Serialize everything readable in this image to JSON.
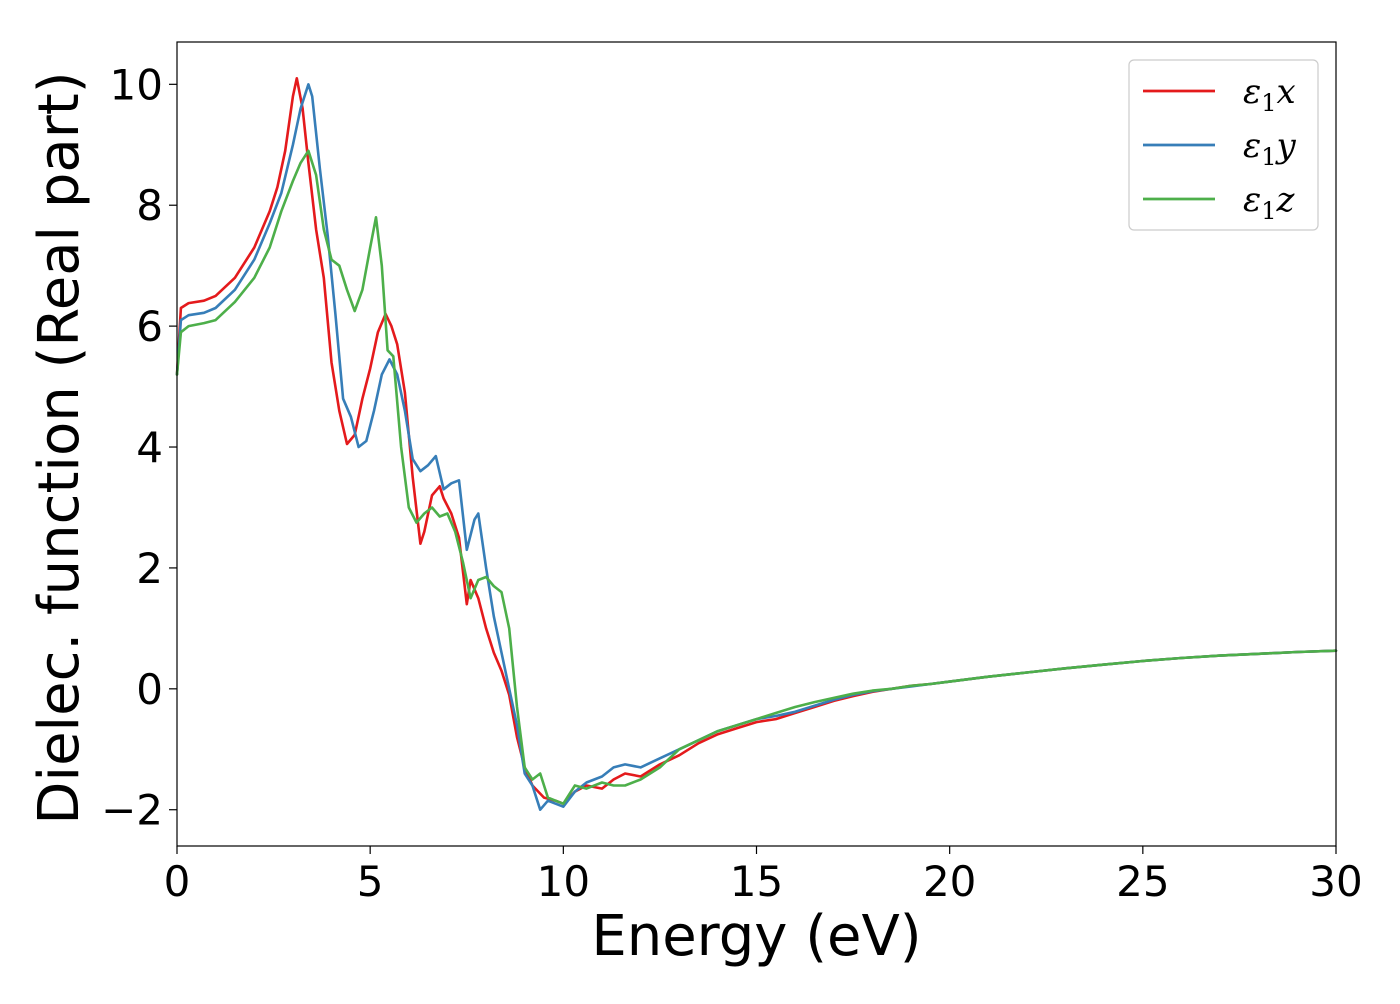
{
  "chart_data": {
    "type": "line",
    "title": "",
    "xlabel": "Energy (eV)",
    "ylabel": "Dielec. function (Real part)",
    "xlim": [
      0,
      30
    ],
    "ylim": [
      -2.6,
      10.7
    ],
    "xticks": [
      0,
      5,
      10,
      15,
      20,
      25,
      30
    ],
    "xtick_labels": [
      "0",
      "5",
      "10",
      "15",
      "20",
      "25",
      "30"
    ],
    "yticks": [
      -2,
      0,
      2,
      4,
      6,
      8,
      10
    ],
    "ytick_labels": [
      "−2",
      "0",
      "2",
      "4",
      "6",
      "8",
      "10"
    ],
    "grid": false,
    "legend_position": "top-right",
    "series": [
      {
        "name": "ε₁x",
        "legend_base": "ε",
        "legend_sub": "1",
        "legend_var": "x",
        "color": "#e41a1c",
        "x": [
          0,
          0.1,
          0.3,
          0.7,
          1.0,
          1.5,
          2.0,
          2.4,
          2.6,
          2.8,
          3.0,
          3.1,
          3.25,
          3.4,
          3.6,
          3.8,
          4.0,
          4.2,
          4.4,
          4.6,
          4.8,
          5.0,
          5.2,
          5.4,
          5.55,
          5.7,
          5.9,
          6.1,
          6.3,
          6.4,
          6.6,
          6.8,
          6.9,
          7.1,
          7.3,
          7.5,
          7.6,
          7.8,
          8.0,
          8.2,
          8.4,
          8.6,
          8.8,
          9.0,
          9.2,
          9.5,
          9.8,
          10.0,
          10.3,
          10.6,
          11.0,
          11.3,
          11.6,
          12.0,
          12.5,
          13.0,
          13.5,
          14.0,
          14.5,
          15.0,
          15.5,
          16.0,
          16.5,
          17.0,
          17.5,
          18.0,
          18.5,
          19.0,
          19.5,
          20.0,
          21.0,
          22.0,
          23.0,
          24.0,
          25.0,
          26.0,
          27.0,
          28.0,
          29.0,
          30.0
        ],
        "y": [
          5.2,
          6.3,
          6.38,
          6.42,
          6.5,
          6.8,
          7.3,
          7.9,
          8.3,
          8.9,
          9.8,
          10.1,
          9.6,
          8.7,
          7.6,
          6.8,
          5.4,
          4.6,
          4.05,
          4.2,
          4.8,
          5.3,
          5.9,
          6.2,
          6.0,
          5.7,
          4.9,
          3.5,
          2.4,
          2.6,
          3.2,
          3.35,
          3.15,
          2.9,
          2.5,
          1.4,
          1.8,
          1.5,
          1.0,
          0.6,
          0.3,
          -0.1,
          -0.8,
          -1.3,
          -1.6,
          -1.8,
          -1.85,
          -1.9,
          -1.7,
          -1.6,
          -1.65,
          -1.5,
          -1.4,
          -1.45,
          -1.25,
          -1.1,
          -0.9,
          -0.75,
          -0.65,
          -0.55,
          -0.5,
          -0.4,
          -0.3,
          -0.2,
          -0.12,
          -0.05,
          0.0,
          0.05,
          0.08,
          0.12,
          0.2,
          0.27,
          0.34,
          0.4,
          0.46,
          0.51,
          0.55,
          0.58,
          0.61,
          0.63
        ]
      },
      {
        "name": "ε₁y",
        "legend_base": "ε",
        "legend_sub": "1",
        "legend_var": "y",
        "color": "#377eb8",
        "x": [
          0,
          0.1,
          0.3,
          0.7,
          1.0,
          1.5,
          2.0,
          2.4,
          2.7,
          3.0,
          3.2,
          3.4,
          3.5,
          3.7,
          3.9,
          4.1,
          4.3,
          4.5,
          4.7,
          4.9,
          5.1,
          5.3,
          5.5,
          5.7,
          5.9,
          6.1,
          6.3,
          6.5,
          6.7,
          6.9,
          7.1,
          7.3,
          7.5,
          7.7,
          7.8,
          8.0,
          8.2,
          8.4,
          8.6,
          8.8,
          9.0,
          9.2,
          9.4,
          9.6,
          9.8,
          10.0,
          10.3,
          10.6,
          11.0,
          11.3,
          11.6,
          12.0,
          12.5,
          13.0,
          13.5,
          14.0,
          14.5,
          15.0,
          15.5,
          16.0,
          16.5,
          17.0,
          17.5,
          18.0,
          18.5,
          19.0,
          19.5,
          20.0,
          21.0,
          22.0,
          23.0,
          24.0,
          25.0,
          26.0,
          27.0,
          28.0,
          29.0,
          30.0
        ],
        "y": [
          5.2,
          6.1,
          6.18,
          6.22,
          6.3,
          6.6,
          7.1,
          7.7,
          8.2,
          9.0,
          9.6,
          10.0,
          9.8,
          8.6,
          7.5,
          6.2,
          4.8,
          4.5,
          4.0,
          4.1,
          4.6,
          5.2,
          5.45,
          5.2,
          4.6,
          3.8,
          3.6,
          3.7,
          3.85,
          3.3,
          3.4,
          3.45,
          2.3,
          2.8,
          2.9,
          2.0,
          1.2,
          0.6,
          0.0,
          -0.6,
          -1.4,
          -1.6,
          -2.0,
          -1.85,
          -1.9,
          -1.95,
          -1.7,
          -1.55,
          -1.45,
          -1.3,
          -1.25,
          -1.3,
          -1.15,
          -1.0,
          -0.85,
          -0.7,
          -0.6,
          -0.5,
          -0.45,
          -0.38,
          -0.28,
          -0.18,
          -0.1,
          -0.04,
          0.0,
          0.04,
          0.08,
          0.12,
          0.2,
          0.27,
          0.34,
          0.4,
          0.46,
          0.51,
          0.55,
          0.58,
          0.61,
          0.63
        ]
      },
      {
        "name": "ε₁z",
        "legend_base": "ε",
        "legend_sub": "1",
        "legend_var": "z",
        "color": "#4daf4a",
        "x": [
          0,
          0.1,
          0.3,
          0.7,
          1.0,
          1.5,
          2.0,
          2.4,
          2.7,
          3.0,
          3.2,
          3.4,
          3.6,
          3.8,
          4.0,
          4.2,
          4.4,
          4.6,
          4.8,
          5.0,
          5.15,
          5.3,
          5.45,
          5.6,
          5.8,
          6.0,
          6.2,
          6.4,
          6.6,
          6.8,
          7.0,
          7.2,
          7.4,
          7.6,
          7.8,
          8.0,
          8.2,
          8.4,
          8.6,
          8.8,
          9.0,
          9.2,
          9.4,
          9.6,
          9.8,
          10.0,
          10.3,
          10.6,
          11.0,
          11.3,
          11.6,
          12.0,
          12.5,
          13.0,
          13.5,
          14.0,
          14.5,
          15.0,
          15.5,
          16.0,
          16.5,
          17.0,
          17.5,
          18.0,
          18.5,
          19.0,
          19.5,
          20.0,
          21.0,
          22.0,
          23.0,
          24.0,
          25.0,
          26.0,
          27.0,
          28.0,
          29.0,
          30.0
        ],
        "y": [
          5.2,
          5.9,
          6.0,
          6.05,
          6.1,
          6.4,
          6.8,
          7.3,
          7.9,
          8.4,
          8.7,
          8.9,
          8.5,
          7.6,
          7.1,
          7.0,
          6.6,
          6.25,
          6.6,
          7.3,
          7.8,
          7.0,
          5.6,
          5.5,
          4.0,
          3.0,
          2.75,
          2.9,
          3.0,
          2.85,
          2.9,
          2.6,
          2.1,
          1.5,
          1.8,
          1.85,
          1.7,
          1.6,
          1.0,
          -0.3,
          -1.3,
          -1.5,
          -1.4,
          -1.8,
          -1.85,
          -1.9,
          -1.6,
          -1.65,
          -1.55,
          -1.6,
          -1.6,
          -1.5,
          -1.3,
          -1.0,
          -0.85,
          -0.7,
          -0.6,
          -0.5,
          -0.4,
          -0.3,
          -0.22,
          -0.15,
          -0.08,
          -0.03,
          0.0,
          0.05,
          0.08,
          0.12,
          0.2,
          0.27,
          0.34,
          0.4,
          0.46,
          0.51,
          0.55,
          0.58,
          0.61,
          0.63
        ]
      }
    ]
  }
}
